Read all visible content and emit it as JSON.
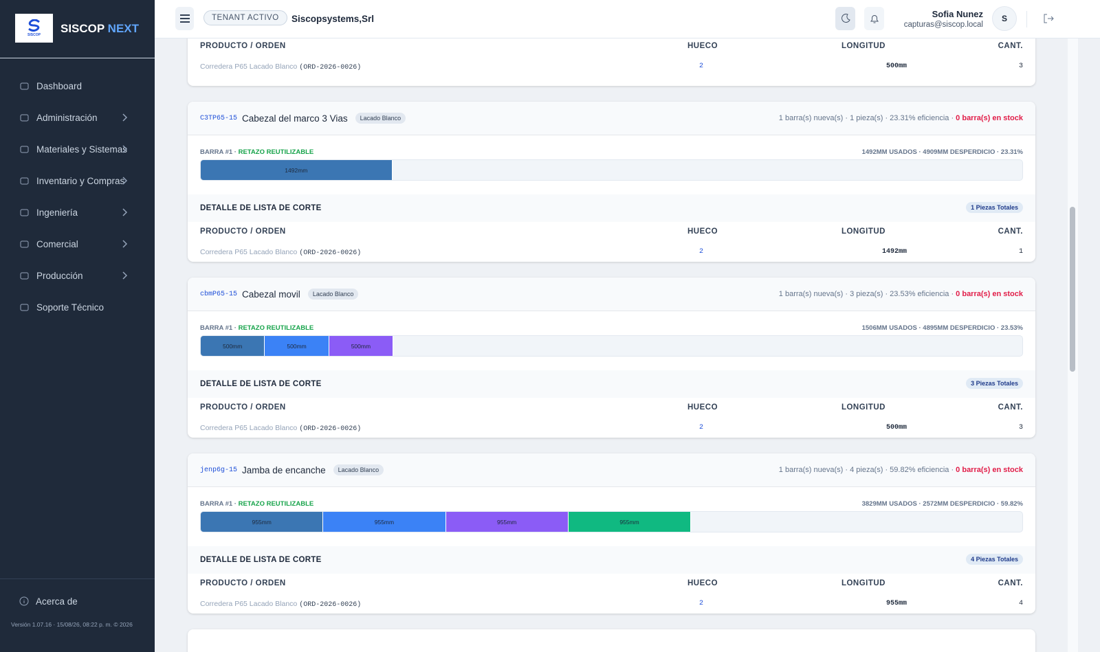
{
  "sidebar": {
    "brand": "SISCOP",
    "brand_accent": "NEXT",
    "logo_text": "SISCOP",
    "nav": [
      {
        "label": "Dashboard",
        "submenu": false
      },
      {
        "label": "Administración",
        "submenu": true
      },
      {
        "label": "Materiales y Sistemas",
        "submenu": true
      },
      {
        "label": "Inventario y Compras",
        "submenu": true
      },
      {
        "label": "Ingeniería",
        "submenu": true
      },
      {
        "label": "Comercial",
        "submenu": true
      },
      {
        "label": "Producción",
        "submenu": true
      },
      {
        "label": "Soporte Técnico",
        "submenu": false
      }
    ],
    "about": "Acerca de",
    "version": "Versión 1.07.16 · 15/08/26, 08:22 p. m. © 2026"
  },
  "header": {
    "tenant_badge": "TENANT ACTIVO",
    "tenant": "Siscopsystems,Srl",
    "user_name": "Sofia Nunez",
    "user_email": "capturas@siscop.local",
    "avatar": "S"
  },
  "table_headers": [
    "PRODUCTO / ORDEN",
    "HUECO",
    "LONGITUD",
    "CANT."
  ],
  "top_rows": [
    {
      "product": "Corredera P65 Lacado Blanco",
      "order": "(ORD-2026-0026)",
      "hueco": 2,
      "length": "500mm",
      "qty": 3
    }
  ],
  "cards": [
    {
      "code": "C3TP65-15",
      "name": "Cabezal del marco 3 Vias",
      "finish": "Lacado Blanco",
      "summary": "1 barra(s) nueva(s) · 1 pieza(s) · 23.31% eficiencia ·",
      "stock": "0 barra(s) en stock",
      "bar_title": "BARRA #1 ·",
      "bar_status": "RETAZO REUTILIZABLE",
      "usage": "1492MM USADOS · 4909MM DESPERDICIO · 23.31%",
      "used": 1492,
      "waste": 4909,
      "segments": [
        {
          "value": 1492,
          "label": "1492mm",
          "color": "#3b76b3"
        }
      ],
      "detail_title": "DETALLE DE LISTA DE CORTE",
      "pieces": "1 Piezas Totales",
      "rows": [
        {
          "product": "Corredera P65 Lacado Blanco",
          "order": "(ORD-2026-0026)",
          "hueco": 2,
          "length": "1492mm",
          "qty": 1
        }
      ]
    },
    {
      "code": "cbmP65-15",
      "name": "Cabezal movil",
      "finish": "Lacado Blanco",
      "summary": "1 barra(s) nueva(s) · 3 pieza(s) · 23.53% eficiencia ·",
      "stock": "0 barra(s) en stock",
      "bar_title": "BARRA #1 ·",
      "bar_status": "RETAZO REUTILIZABLE",
      "usage": "1506MM USADOS · 4895MM DESPERDICIO · 23.53%",
      "used": 1506,
      "waste": 4895,
      "segments": [
        {
          "value": 500,
          "label": "500mm",
          "color": "#3b76b3"
        },
        {
          "value": 500,
          "label": "500mm",
          "color": "#3b82f6"
        },
        {
          "value": 500,
          "label": "500mm",
          "color": "#8b5cf6"
        }
      ],
      "detail_title": "DETALLE DE LISTA DE CORTE",
      "pieces": "3 Piezas Totales",
      "rows": [
        {
          "product": "Corredera P65 Lacado Blanco",
          "order": "(ORD-2026-0026)",
          "hueco": 2,
          "length": "500mm",
          "qty": 3
        }
      ]
    },
    {
      "code": "jenp6g-15",
      "name": "Jamba de encanche",
      "finish": "Lacado Blanco",
      "summary": "1 barra(s) nueva(s) · 4 pieza(s) · 59.82% eficiencia ·",
      "stock": "0 barra(s) en stock",
      "bar_title": "BARRA #1 ·",
      "bar_status": "RETAZO REUTILIZABLE",
      "usage": "3829MM USADOS · 2572MM DESPERDICIO · 59.82%",
      "used": 3829,
      "waste": 2572,
      "segments": [
        {
          "value": 955,
          "label": "955mm",
          "color": "#3b76b3"
        },
        {
          "value": 955,
          "label": "955mm",
          "color": "#3b82f6"
        },
        {
          "value": 955,
          "label": "955mm",
          "color": "#8b5cf6"
        },
        {
          "value": 955,
          "label": "955mm",
          "color": "#10b981"
        }
      ],
      "detail_title": "DETALLE DE LISTA DE CORTE",
      "pieces": "4 Piezas Totales",
      "rows": [
        {
          "product": "Corredera P65 Lacado Blanco",
          "order": "(ORD-2026-0026)",
          "hueco": 2,
          "length": "955mm",
          "qty": 4
        }
      ]
    }
  ]
}
